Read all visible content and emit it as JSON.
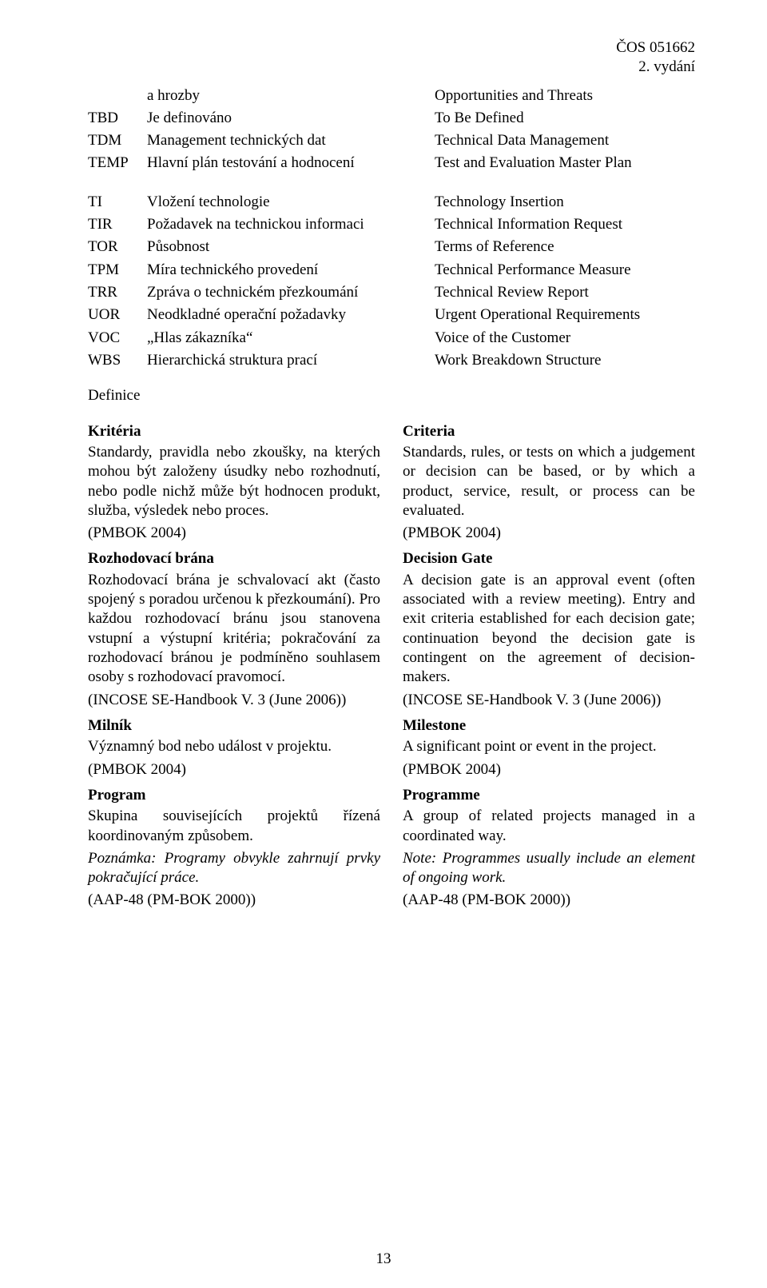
{
  "header": {
    "doc_code": "ČOS 051662",
    "edition": "2. vydání"
  },
  "abbr_block1": [
    {
      "code": "",
      "cz": "a hrozby",
      "en": "Opportunities and Threats"
    },
    {
      "code": "TBD",
      "cz": "Je definováno",
      "en": "To Be Defined"
    },
    {
      "code": "TDM",
      "cz": "Management technických dat",
      "en": "Technical Data Management"
    },
    {
      "code": "TEMP",
      "cz": "Hlavní plán testování a hodnocení",
      "en": "Test and Evaluation Master Plan"
    }
  ],
  "abbr_block2": [
    {
      "code": "TI",
      "cz": "Vložení technologie",
      "en": "Technology Insertion"
    },
    {
      "code": "TIR",
      "cz": "Požadavek na technickou informaci",
      "en": "Technical Information Request"
    },
    {
      "code": "TOR",
      "cz": "Působnost",
      "en": "Terms of Reference"
    },
    {
      "code": "TPM",
      "cz": "Míra technického provedení",
      "en": "Technical Performance Measure"
    },
    {
      "code": "TRR",
      "cz": "Zpráva o technickém přezkoumání",
      "en": "Technical Review Report"
    },
    {
      "code": "UOR",
      "cz": "Neodkladné operační požadavky",
      "en": "Urgent Operational Requirements"
    },
    {
      "code": "VOC",
      "cz": "„Hlas zákazníka“",
      "en": "Voice of the Customer"
    },
    {
      "code": "WBS",
      "cz": "Hierarchická struktura prací",
      "en": "Work Breakdown Structure"
    }
  ],
  "defs_heading": "Definice",
  "left": {
    "kriteria_h": "Kritéria",
    "kriteria_p": "Standardy, pravidla nebo zkoušky, na kterých mohou být založeny úsudky nebo rozhodnutí, nebo podle nichž může být hodnocen produkt, služba, výsledek nebo proces.",
    "kriteria_src": "(PMBOK 2004)",
    "rozh_h": "Rozhodovací brána",
    "rozh_p": "Rozhodovací brána je schvalovací akt (často spojený s poradou určenou k přezkoumání). Pro každou rozhodovací bránu jsou stanovena vstupní a výstupní kritéria; pokračování za rozhodovací bránou je podmíněno souhlasem osoby s rozhodovací pravomocí.",
    "rozh_src": "(INCOSE SE-Handbook V. 3 (June 2006))",
    "milnik_h": "Milník",
    "milnik_p": "Významný bod nebo událost v projektu.",
    "milnik_src": "(PMBOK 2004)",
    "program_h": "Program",
    "program_p": "Skupina souvisejících projektů řízená koordinovaným způsobem.",
    "program_note": "Poznámka: Programy obvykle zahrnují prvky pokračující práce.",
    "program_src": "(AAP-48 (PM-BOK 2000))"
  },
  "right": {
    "criteria_h": "Criteria",
    "criteria_p": "Standards, rules, or tests on which a judgement or decision can be based, or by which a product, service, result, or process can be evaluated.",
    "criteria_src": "(PMBOK 2004)",
    "dg_h": "Decision Gate",
    "dg_p": "A decision gate is an approval event (often associated with a review meeting). Entry and exit criteria established for each decision gate; continuation beyond the decision gate is contingent on the agreement of decision-makers.",
    "dg_src": "(INCOSE SE-Handbook V. 3 (June 2006))",
    "milestone_h": "Milestone",
    "milestone_p": "A significant point or event in the project.",
    "milestone_src": "(PMBOK 2004)",
    "programme_h": "Programme",
    "programme_p": "A group of related projects managed in a coordinated way.",
    "programme_note": "Note: Programmes usually include an element of ongoing work.",
    "programme_src": "(AAP-48 (PM-BOK 2000))"
  },
  "page_number": "13"
}
